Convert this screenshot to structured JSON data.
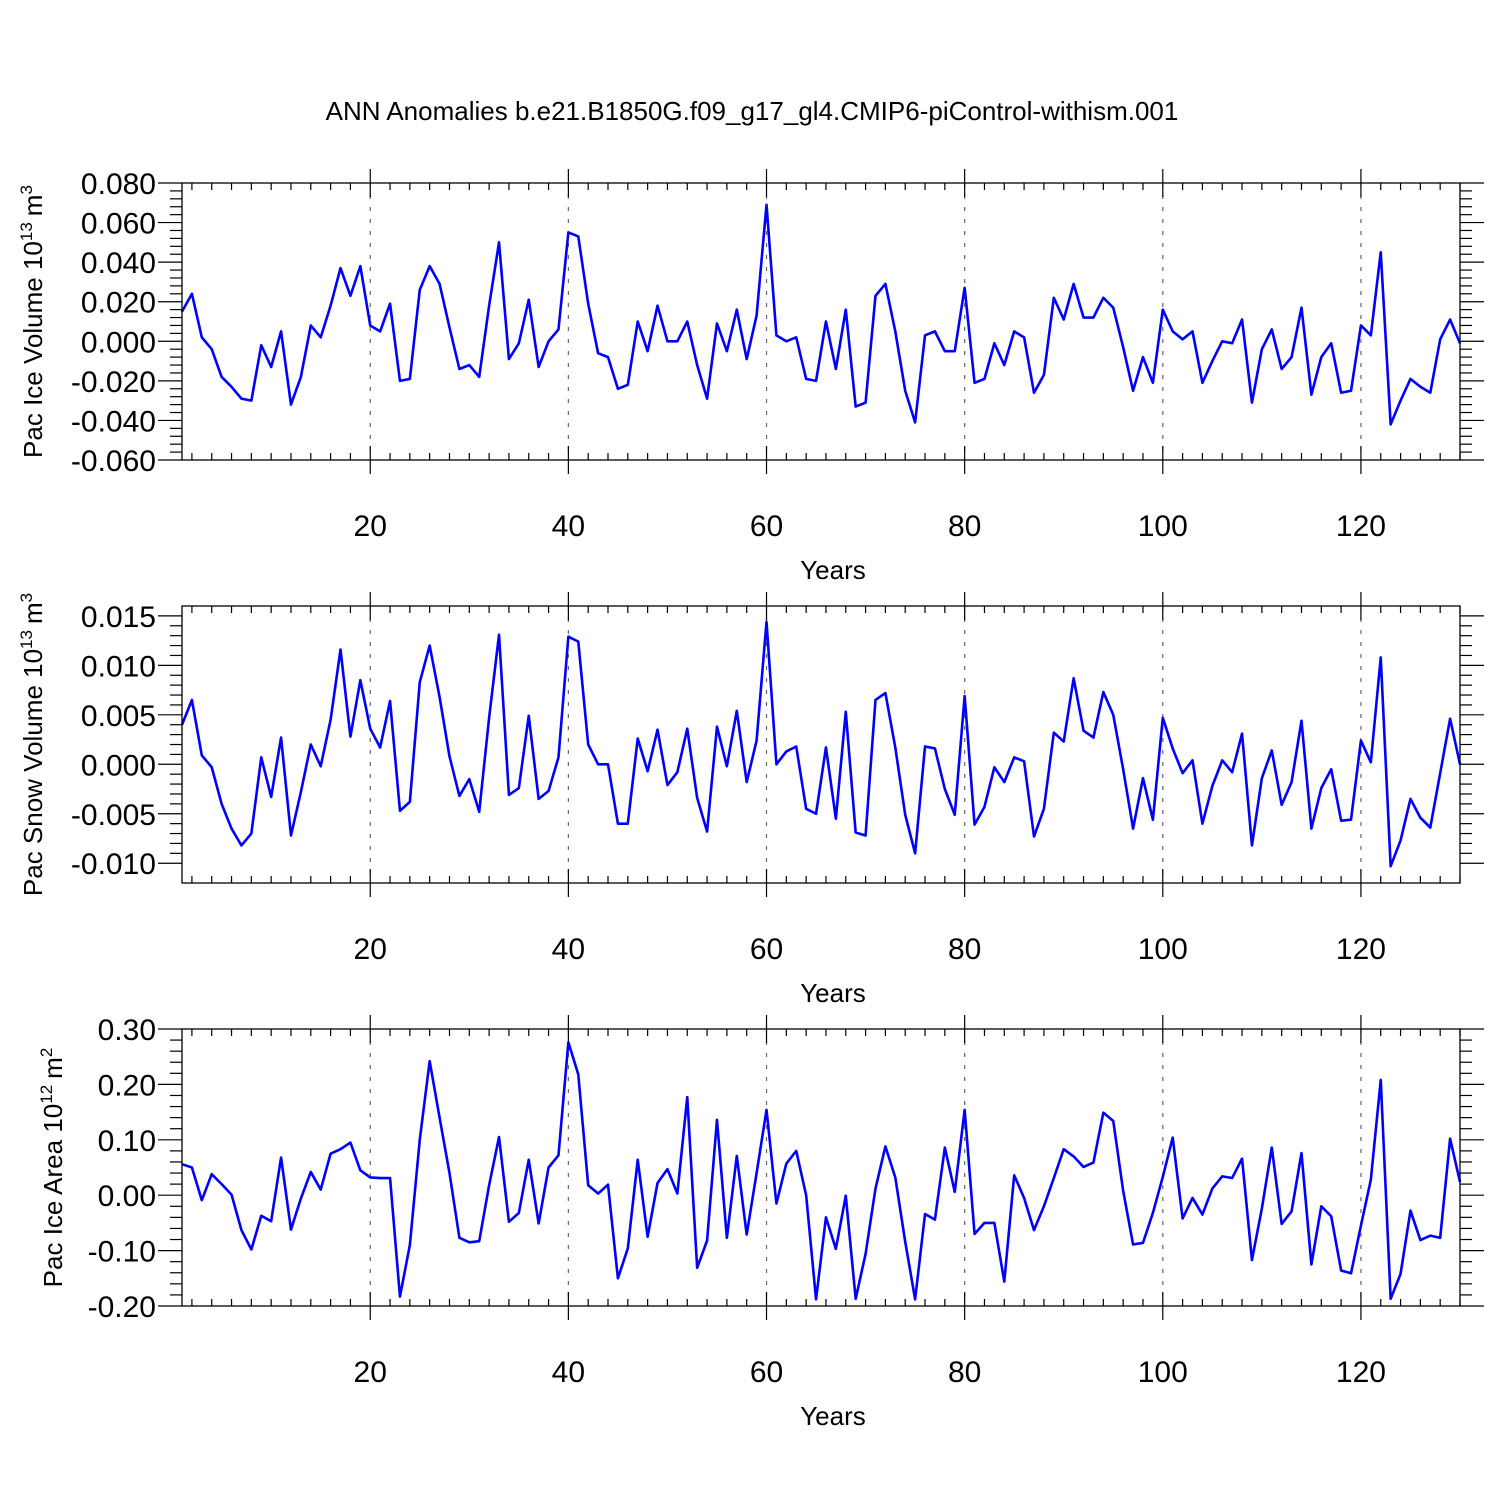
{
  "title": "ANN Anomalies b.e21.B1850G.f09_g17_gl4.CMIP6-piControl-withism.001",
  "colors": {
    "series": "#0000ff",
    "axes": "#000000",
    "grid": "#666666"
  },
  "chart_data": [
    {
      "type": "line",
      "ylabel": {
        "main": "Pac Ice Volume 10",
        "exponent": "13",
        "unit": "m",
        "unit_exponent": "3"
      },
      "xlabel": "Years",
      "xlim": [
        1,
        130
      ],
      "ylim": [
        -0.06,
        0.08
      ],
      "grid": "vertical dashed",
      "x_ticks": [
        20,
        40,
        60,
        80,
        100,
        120
      ],
      "x_tick_labels": [
        "20",
        "40",
        "60",
        "80",
        "100",
        "120"
      ],
      "y_ticks": [
        -0.06,
        -0.04,
        -0.02,
        0.0,
        0.02,
        0.04,
        0.06,
        0.08
      ],
      "y_tick_labels": [
        "-0.060",
        "-0.040",
        "-0.020",
        "0.000",
        "0.020",
        "0.040",
        "0.060",
        "0.080"
      ],
      "x_start": 1,
      "values": [
        0.015,
        0.024,
        0.002,
        -0.004,
        -0.018,
        -0.023,
        -0.029,
        -0.03,
        -0.002,
        -0.013,
        0.005,
        -0.032,
        -0.018,
        0.008,
        0.002,
        0.018,
        0.037,
        0.023,
        0.038,
        0.008,
        0.005,
        0.019,
        -0.02,
        -0.019,
        0.026,
        0.038,
        0.029,
        0.007,
        -0.014,
        -0.012,
        -0.018,
        0.018,
        0.05,
        -0.009,
        -0.001,
        0.021,
        -0.013,
        0.0,
        0.006,
        0.055,
        0.053,
        0.019,
        -0.006,
        -0.008,
        -0.024,
        -0.022,
        0.01,
        -0.005,
        0.018,
        0.0,
        0.0,
        0.01,
        -0.012,
        -0.029,
        0.009,
        -0.005,
        0.016,
        -0.009,
        0.013,
        0.069,
        0.003,
        0.0,
        0.002,
        -0.019,
        -0.02,
        0.01,
        -0.014,
        0.016,
        -0.033,
        -0.031,
        0.023,
        0.029,
        0.005,
        -0.025,
        -0.041,
        0.003,
        0.005,
        -0.005,
        -0.005,
        0.027,
        -0.021,
        -0.019,
        -0.001,
        -0.012,
        0.005,
        0.002,
        -0.026,
        -0.017,
        0.022,
        0.011,
        0.029,
        0.012,
        0.012,
        0.022,
        0.017,
        -0.003,
        -0.025,
        -0.008,
        -0.021,
        0.016,
        0.005,
        0.001,
        0.005,
        -0.021,
        -0.01,
        0.0,
        -0.001,
        0.011,
        -0.031,
        -0.004,
        0.006,
        -0.014,
        -0.008,
        0.017,
        -0.027,
        -0.008,
        -0.001,
        -0.026,
        -0.025,
        0.008,
        0.003,
        0.045,
        -0.042,
        -0.03,
        -0.019,
        -0.023,
        -0.026,
        0.001,
        0.011,
        -0.001
      ]
    },
    {
      "type": "line",
      "ylabel": {
        "main": "Pac Snow Volume 10",
        "exponent": "13",
        "unit": "m",
        "unit_exponent": "3"
      },
      "xlabel": "Years",
      "xlim": [
        1,
        130
      ],
      "ylim": [
        -0.012,
        0.016
      ],
      "grid": "vertical dashed",
      "x_ticks": [
        20,
        40,
        60,
        80,
        100,
        120
      ],
      "x_tick_labels": [
        "20",
        "40",
        "60",
        "80",
        "100",
        "120"
      ],
      "y_ticks": [
        -0.01,
        -0.005,
        0.0,
        0.005,
        0.01,
        0.015
      ],
      "y_tick_labels": [
        "-0.010",
        "-0.005",
        "0.000",
        "0.005",
        "0.010",
        "0.015"
      ],
      "x_start": 1,
      "values": [
        0.004,
        0.0065,
        0.0009,
        -0.0003,
        -0.004,
        -0.0065,
        -0.0082,
        -0.007,
        0.0007,
        -0.0033,
        0.0027,
        -0.0072,
        -0.0028,
        0.002,
        -0.0002,
        0.0045,
        0.0116,
        0.0028,
        0.0085,
        0.0036,
        0.0017,
        0.0064,
        -0.0047,
        -0.0038,
        0.0083,
        0.012,
        0.0068,
        0.0008,
        -0.0032,
        -0.0015,
        -0.0048,
        0.0047,
        0.0131,
        -0.0031,
        -0.0024,
        0.0049,
        -0.0035,
        -0.0027,
        0.0007,
        0.0129,
        0.0124,
        0.002,
        0.0,
        0.0,
        -0.006,
        -0.006,
        0.0026,
        -0.0007,
        0.0035,
        -0.0021,
        -0.0008,
        0.0036,
        -0.0034,
        -0.0068,
        0.0038,
        -0.0002,
        0.0054,
        -0.0018,
        0.0024,
        0.0144,
        0.0,
        0.0013,
        0.0018,
        -0.0045,
        -0.005,
        0.0017,
        -0.0055,
        0.0053,
        -0.0069,
        -0.0072,
        0.0065,
        0.0072,
        0.0017,
        -0.0051,
        -0.009,
        0.0018,
        0.0016,
        -0.0025,
        -0.0051,
        0.0069,
        -0.0061,
        -0.0043,
        -0.0003,
        -0.0018,
        0.0007,
        0.0003,
        -0.0073,
        -0.0045,
        0.0032,
        0.0023,
        0.0087,
        0.0034,
        0.0027,
        0.0073,
        0.005,
        -0.0005,
        -0.0065,
        -0.0014,
        -0.0056,
        0.0047,
        0.0016,
        -0.0009,
        0.0004,
        -0.006,
        -0.0022,
        0.0004,
        -0.0008,
        0.0031,
        -0.0082,
        -0.0014,
        0.0014,
        -0.0041,
        -0.0018,
        0.0044,
        -0.0065,
        -0.0024,
        -0.0005,
        -0.0057,
        -0.0056,
        0.0024,
        0.0002,
        0.0108,
        -0.0103,
        -0.0077,
        -0.0035,
        -0.0054,
        -0.0064,
        -0.0009,
        0.0046,
        0.0
      ]
    },
    {
      "type": "line",
      "ylabel": {
        "main": "Pac Ice Area 10",
        "exponent": "12",
        "unit": "m",
        "unit_exponent": "2"
      },
      "xlabel": "Years",
      "xlim": [
        1,
        130
      ],
      "ylim": [
        -0.2,
        0.3
      ],
      "grid": "vertical dashed",
      "x_ticks": [
        20,
        40,
        60,
        80,
        100,
        120
      ],
      "x_tick_labels": [
        "20",
        "40",
        "60",
        "80",
        "100",
        "120"
      ],
      "y_ticks": [
        -0.2,
        -0.1,
        0.0,
        0.1,
        0.2,
        0.3
      ],
      "y_tick_labels": [
        "-0.20",
        "-0.10",
        "0.00",
        "0.10",
        "0.20",
        "0.30"
      ],
      "x_start": 1,
      "values": [
        0.056,
        0.05,
        -0.009,
        0.038,
        0.02,
        0.001,
        -0.063,
        -0.098,
        -0.037,
        -0.047,
        0.068,
        -0.062,
        -0.006,
        0.042,
        0.01,
        0.075,
        0.083,
        0.095,
        0.045,
        0.032,
        0.031,
        0.031,
        -0.183,
        -0.09,
        0.1,
        0.242,
        0.14,
        0.04,
        -0.077,
        -0.085,
        -0.083,
        0.018,
        0.105,
        -0.048,
        -0.032,
        0.064,
        -0.051,
        0.05,
        0.072,
        0.276,
        0.218,
        0.018,
        0.003,
        0.019,
        -0.15,
        -0.096,
        0.064,
        -0.075,
        0.022,
        0.047,
        0.003,
        0.177,
        -0.131,
        -0.082,
        0.136,
        -0.077,
        0.071,
        -0.071,
        0.04,
        0.154,
        -0.015,
        0.057,
        0.08,
        0.0,
        -0.188,
        -0.04,
        -0.097,
        -0.001,
        -0.187,
        -0.106,
        0.012,
        0.088,
        0.032,
        -0.084,
        -0.188,
        -0.034,
        -0.044,
        0.086,
        0.006,
        0.154,
        -0.07,
        -0.05,
        -0.05,
        -0.156,
        0.036,
        -0.005,
        -0.063,
        -0.02,
        0.031,
        0.083,
        0.07,
        0.051,
        0.059,
        0.149,
        0.134,
        0.008,
        -0.089,
        -0.086,
        -0.032,
        0.033,
        0.104,
        -0.042,
        -0.005,
        -0.035,
        0.012,
        0.034,
        0.031,
        0.066,
        -0.117,
        -0.024,
        0.086,
        -0.052,
        -0.029,
        0.076,
        -0.125,
        -0.02,
        -0.038,
        -0.136,
        -0.141,
        -0.055,
        0.028,
        0.208,
        -0.187,
        -0.142,
        -0.028,
        -0.081,
        -0.073,
        -0.077,
        0.102,
        0.024
      ]
    }
  ]
}
